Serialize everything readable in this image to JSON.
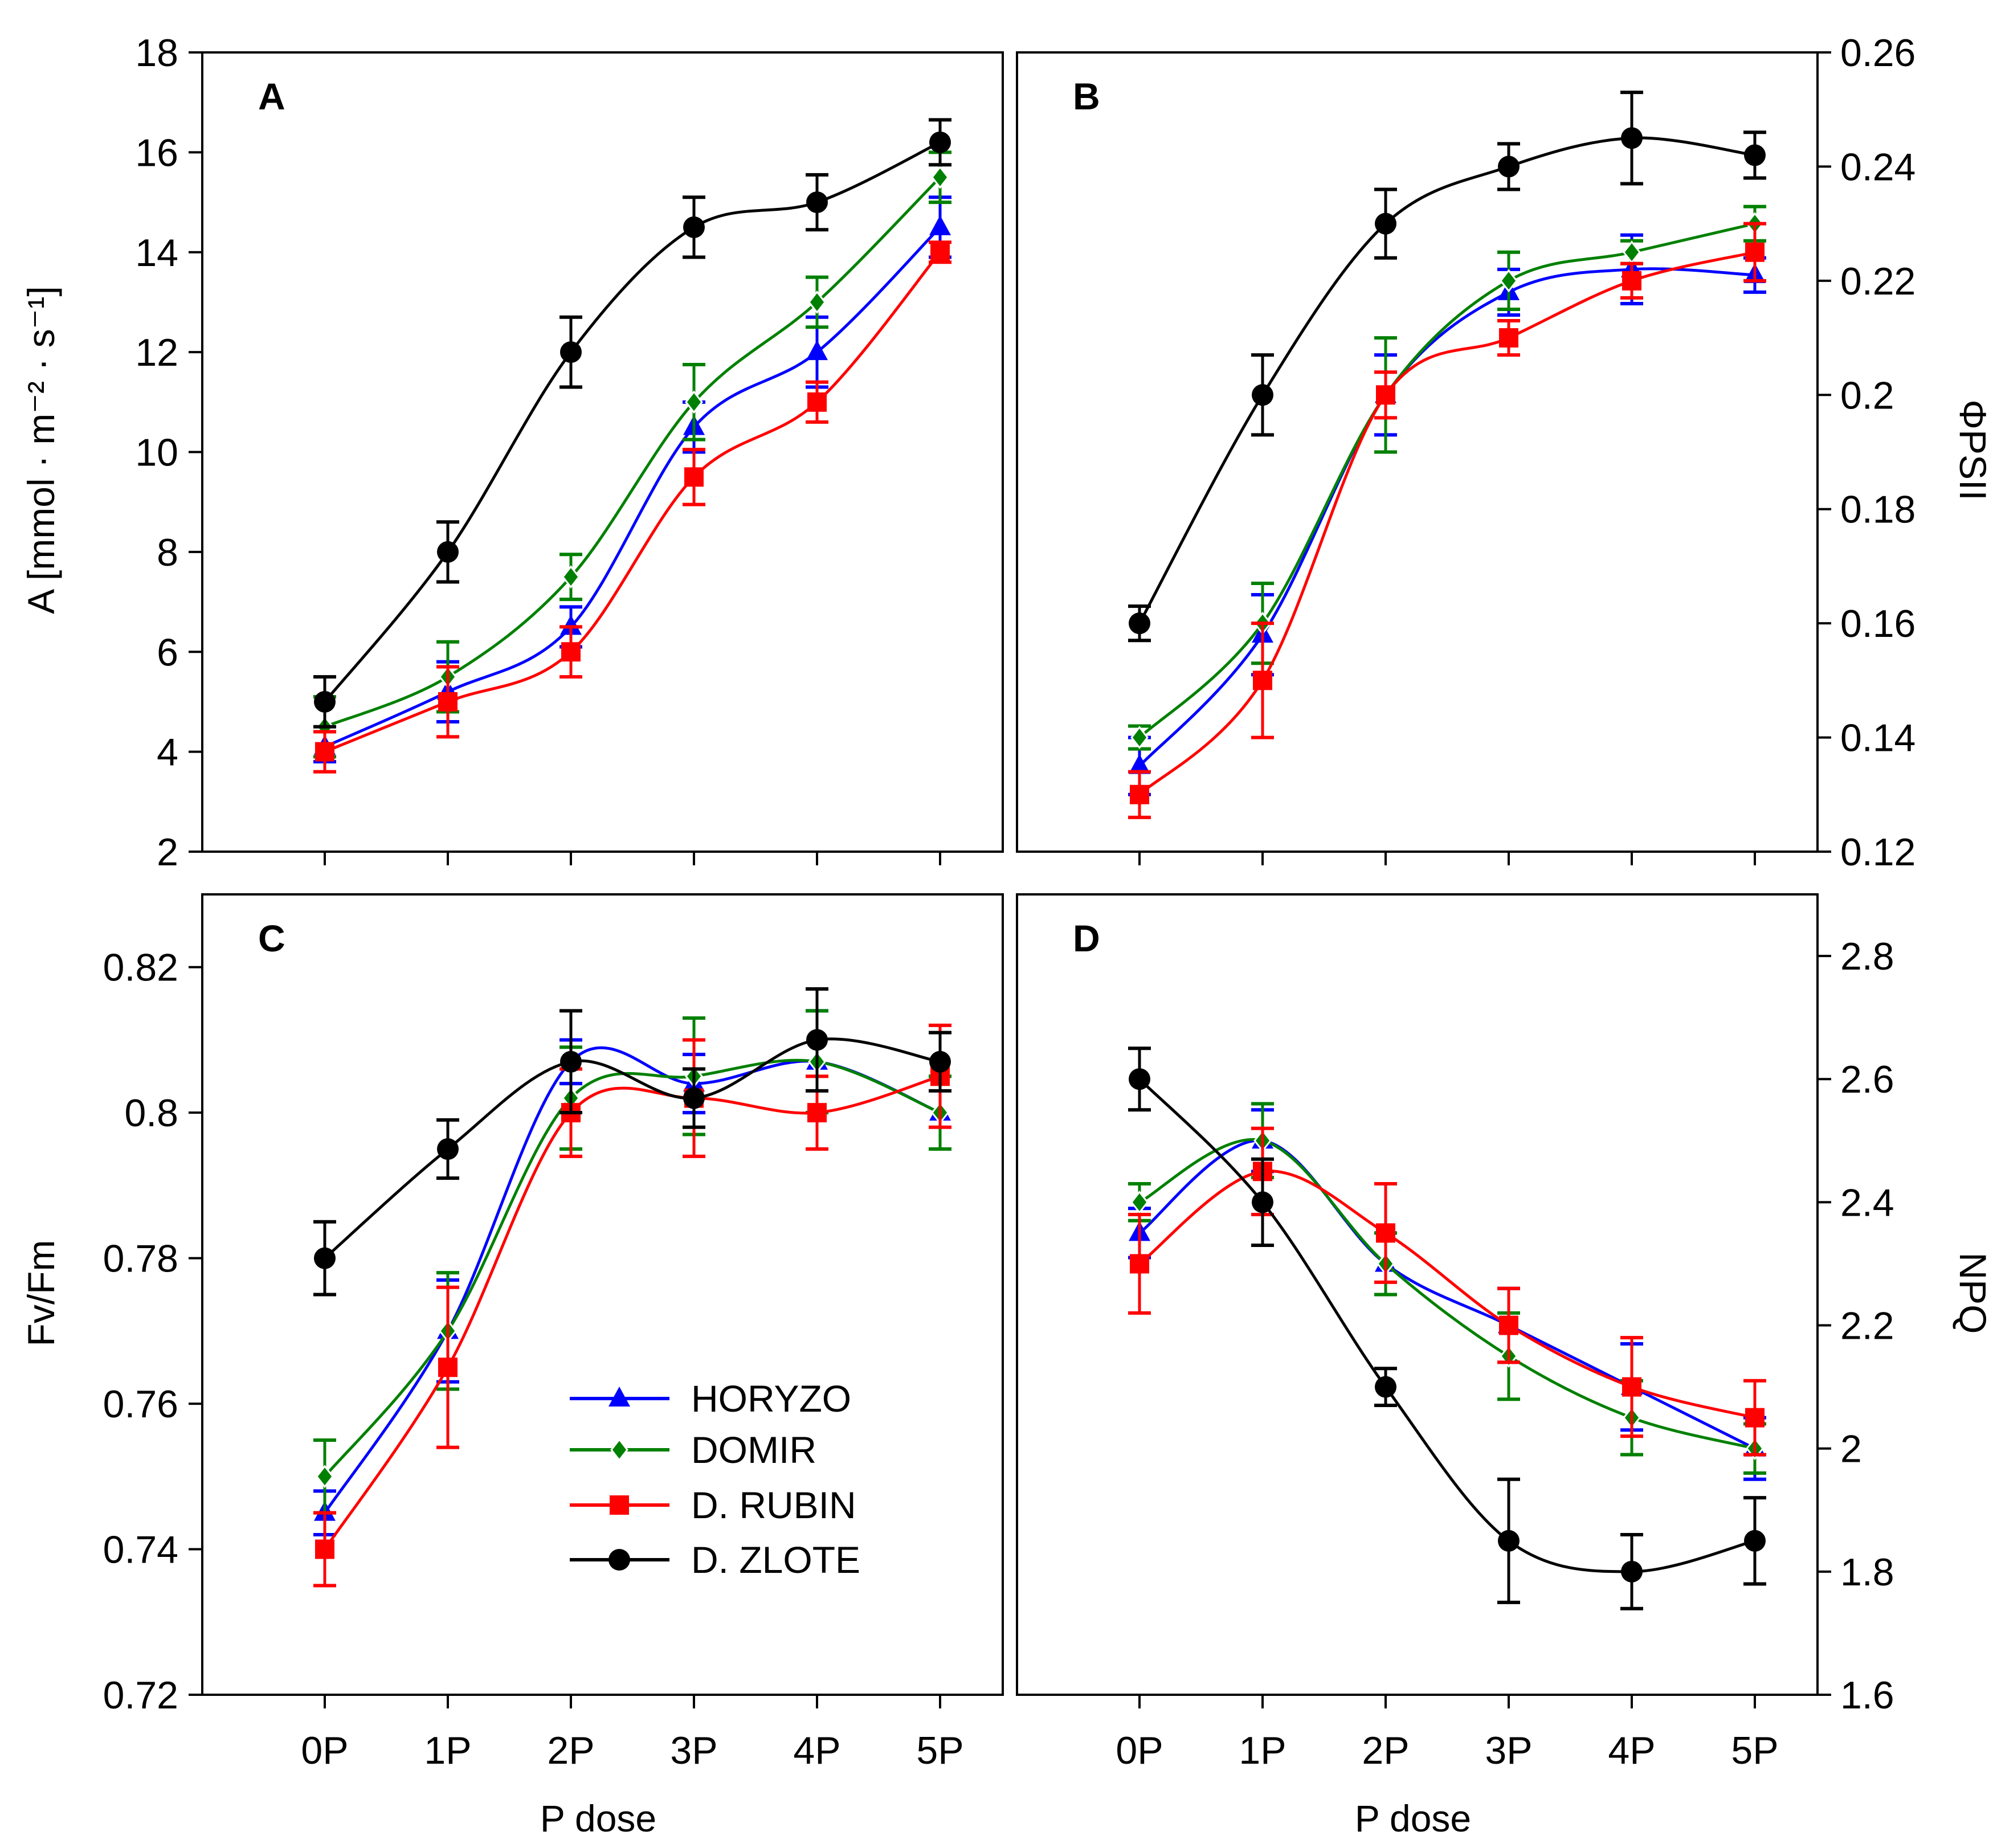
{
  "figure": {
    "x_title": "P dose",
    "legend": [
      {
        "name": "HORYZO",
        "color": "#0000ff",
        "marker": "triangle"
      },
      {
        "name": "DOMIR",
        "color": "#008000",
        "marker": "diamond"
      },
      {
        "name": "D. RUBIN",
        "color": "#ff0000",
        "marker": "square"
      },
      {
        "name": "D. ZLOTE",
        "color": "#000000",
        "marker": "circle"
      }
    ]
  },
  "chart_data": [
    {
      "id": "A",
      "type": "line",
      "panel_label": "A",
      "categories": [
        "0P",
        "1P",
        "2P",
        "3P",
        "4P",
        "5P"
      ],
      "ylabel": "A [mmol · m⁻² · s⁻¹]",
      "y_side": "left",
      "ylim": [
        2,
        18
      ],
      "yticks": [
        2,
        4,
        6,
        8,
        10,
        12,
        14,
        16,
        18
      ],
      "ytick_labels": [
        "2",
        "4",
        "6",
        "8",
        "10",
        "12",
        "14",
        "16",
        "18"
      ],
      "series": [
        {
          "name": "HORYZO",
          "values": [
            4.1,
            5.2,
            6.5,
            10.5,
            12.0,
            14.5
          ],
          "errors": [
            0.3,
            0.6,
            0.4,
            0.5,
            0.7,
            0.6
          ]
        },
        {
          "name": "DOMIR",
          "values": [
            4.5,
            5.5,
            7.5,
            11.0,
            13.0,
            15.5
          ],
          "errors": [
            0.6,
            0.7,
            0.45,
            0.75,
            0.5,
            0.5
          ]
        },
        {
          "name": "D. RUBIN",
          "values": [
            4.0,
            5.0,
            6.0,
            9.5,
            11.0,
            14.0
          ],
          "errors": [
            0.4,
            0.7,
            0.5,
            0.55,
            0.4,
            0.2
          ]
        },
        {
          "name": "D. ZLOTE",
          "values": [
            5.0,
            8.0,
            12.0,
            14.5,
            15.0,
            16.2
          ],
          "errors": [
            0.5,
            0.6,
            0.7,
            0.6,
            0.55,
            0.45
          ]
        }
      ]
    },
    {
      "id": "B",
      "type": "line",
      "panel_label": "B",
      "categories": [
        "0P",
        "1P",
        "2P",
        "3P",
        "4P",
        "5P"
      ],
      "ylabel": "ΦPSII",
      "y_side": "right",
      "ylim": [
        0.12,
        0.26
      ],
      "yticks": [
        0.12,
        0.14,
        0.16,
        0.18,
        0.2,
        0.22,
        0.24,
        0.26
      ],
      "ytick_labels": [
        "0.12",
        "0.14",
        "0.16",
        "0.18",
        "0.2",
        "0.22",
        "0.24",
        "0.26"
      ],
      "series": [
        {
          "name": "HORYZO",
          "values": [
            0.135,
            0.158,
            0.2,
            0.218,
            0.222,
            0.221
          ],
          "errors": [
            0.005,
            0.007,
            0.007,
            0.004,
            0.006,
            0.003
          ]
        },
        {
          "name": "DOMIR",
          "values": [
            0.14,
            0.16,
            0.2,
            0.22,
            0.225,
            0.23
          ],
          "errors": [
            0.002,
            0.007,
            0.01,
            0.005,
            0.002,
            0.003
          ]
        },
        {
          "name": "D. RUBIN",
          "values": [
            0.13,
            0.15,
            0.2,
            0.21,
            0.22,
            0.225
          ],
          "errors": [
            0.004,
            0.01,
            0.004,
            0.003,
            0.003,
            0.005
          ]
        },
        {
          "name": "D. ZLOTE",
          "values": [
            0.16,
            0.2,
            0.23,
            0.24,
            0.245,
            0.242
          ],
          "errors": [
            0.003,
            0.007,
            0.006,
            0.004,
            0.008,
            0.004
          ]
        }
      ]
    },
    {
      "id": "C",
      "type": "line",
      "panel_label": "C",
      "categories": [
        "0P",
        "1P",
        "2P",
        "3P",
        "4P",
        "5P"
      ],
      "ylabel": "Fv/Fm",
      "y_side": "left",
      "ylim": [
        0.72,
        0.83
      ],
      "yticks": [
        0.72,
        0.74,
        0.76,
        0.78,
        0.8,
        0.82
      ],
      "ytick_labels": [
        "0.72",
        "0.74",
        "0.76",
        "0.78",
        "0.8",
        "0.82"
      ],
      "series": [
        {
          "name": "HORYZO",
          "values": [
            0.745,
            0.77,
            0.807,
            0.804,
            0.807,
            0.8
          ],
          "errors": [
            0.003,
            0.007,
            0.003,
            0.004,
            0.007,
            0.005
          ]
        },
        {
          "name": "DOMIR",
          "values": [
            0.75,
            0.77,
            0.802,
            0.805,
            0.807,
            0.8
          ],
          "errors": [
            0.005,
            0.008,
            0.007,
            0.008,
            0.007,
            0.005
          ]
        },
        {
          "name": "D. RUBIN",
          "values": [
            0.74,
            0.765,
            0.8,
            0.802,
            0.8,
            0.805
          ],
          "errors": [
            0.005,
            0.011,
            0.006,
            0.008,
            0.005,
            0.007
          ]
        },
        {
          "name": "D. ZLOTE",
          "values": [
            0.78,
            0.795,
            0.807,
            0.802,
            0.81,
            0.807
          ],
          "errors": [
            0.005,
            0.004,
            0.007,
            0.004,
            0.007,
            0.004
          ]
        }
      ]
    },
    {
      "id": "D",
      "type": "line",
      "panel_label": "D",
      "categories": [
        "0P",
        "1P",
        "2P",
        "3P",
        "4P",
        "5P"
      ],
      "ylabel": "NPQ",
      "y_side": "right",
      "ylim": [
        1.6,
        2.9
      ],
      "yticks": [
        1.6,
        1.8,
        2.0,
        2.2,
        2.4,
        2.6,
        2.8
      ],
      "ytick_labels": [
        "1.6",
        "1.8",
        "2",
        "2.2",
        "2.4",
        "2.6",
        "2.8"
      ],
      "series": [
        {
          "name": "HORYZO",
          "values": [
            2.35,
            2.5,
            2.3,
            2.2,
            2.1,
            2.0
          ],
          "errors": [
            0.04,
            0.05,
            0.05,
            0.06,
            0.07,
            0.05
          ]
        },
        {
          "name": "DOMIR",
          "values": [
            2.4,
            2.5,
            2.3,
            2.15,
            2.05,
            2.0
          ],
          "errors": [
            0.03,
            0.06,
            0.05,
            0.07,
            0.06,
            0.04
          ]
        },
        {
          "name": "D. RUBIN",
          "values": [
            2.3,
            2.45,
            2.35,
            2.2,
            2.1,
            2.05
          ],
          "errors": [
            0.08,
            0.07,
            0.08,
            0.06,
            0.08,
            0.06
          ]
        },
        {
          "name": "D. ZLOTE",
          "values": [
            2.6,
            2.4,
            2.1,
            1.85,
            1.8,
            1.85
          ],
          "errors": [
            0.05,
            0.07,
            0.03,
            0.1,
            0.06,
            0.07
          ]
        }
      ]
    }
  ]
}
